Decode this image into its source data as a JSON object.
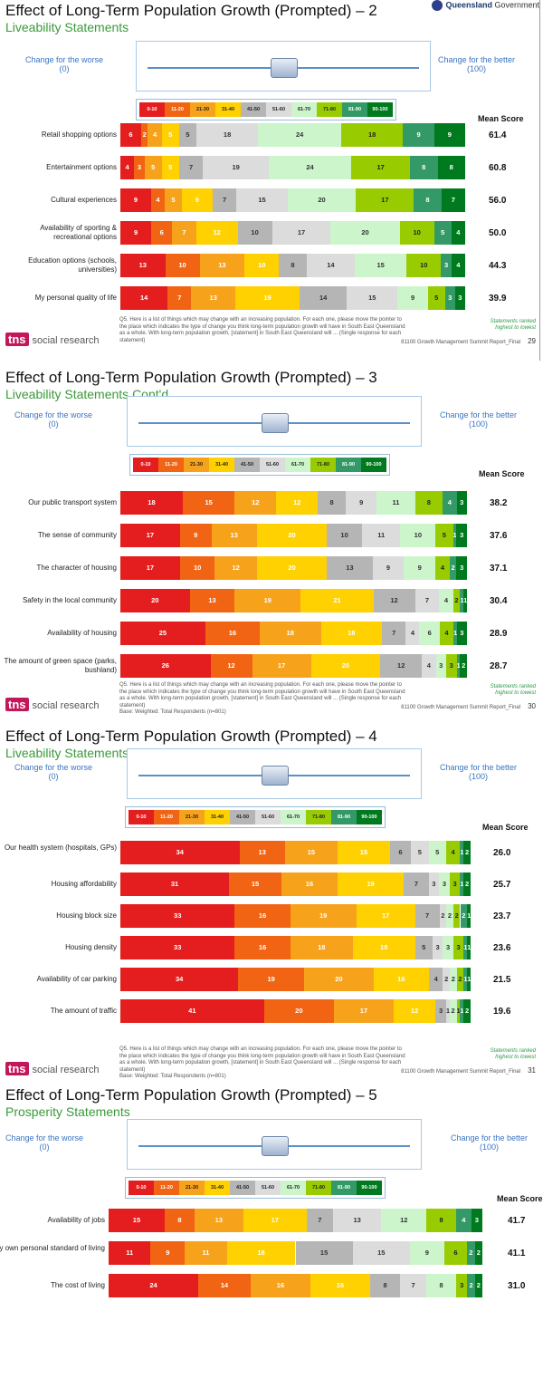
{
  "header": {
    "gov_label": "Queensland Government",
    "gov_label_bold": "Queensland",
    "gov_label_rest": "Government"
  },
  "scale": {
    "worse": "Change for the worse",
    "worse_value": "(0)",
    "better": "Change for the better",
    "better_value": "(100)",
    "mean_header": "Mean Score",
    "legend": [
      "0-10",
      "11-20",
      "21-30",
      "31-40",
      "41-50",
      "51-60",
      "61-70",
      "71-80",
      "81-90",
      "90-100"
    ],
    "colors": [
      "#e41e1e",
      "#f06414",
      "#f7a21b",
      "#ffd100",
      "#b5b5b5",
      "#dcdcdc",
      "#ccf5cc",
      "#99cc00",
      "#339966",
      "#007a1e"
    ]
  },
  "footnote": {
    "q5": "Q5.  Here is a list of things which may change with an increasing population.  For each one, please move the pointer to the place which indicates the type of change you think long-term population growth will have in South East Queensland as a whole.  With long-term population growth, [statement] in South East Queensland will ... (Single response for each statement)",
    "base": "Base: Weighted: Total Respondents (n=801)",
    "ranked": "Statements ranked highest to lowest",
    "report": "81100 Growth Management Summit Report_Final",
    "tns": "social research",
    "tns_logo": "tns"
  },
  "chart_data": [
    {
      "type": "bar",
      "stacked": true,
      "orientation": "horizontal",
      "title": "Effect of Long-Term Population Growth (Prompted) – 2",
      "subtitle": "Liveability Statements",
      "page": "29",
      "rows": [
        {
          "label": "Retail shopping options",
          "values": [
            6,
            2,
            4,
            5,
            5,
            18,
            24,
            18,
            9,
            9
          ],
          "mean": "61.4"
        },
        {
          "label": "Entertainment options",
          "values": [
            4,
            3,
            5,
            5,
            7,
            19,
            24,
            17,
            8,
            8
          ],
          "mean": "60.8"
        },
        {
          "label": "Cultural experiences",
          "values": [
            9,
            4,
            5,
            9,
            7,
            15,
            20,
            17,
            8,
            7
          ],
          "mean": "56.0"
        },
        {
          "label": "Availability of sporting & recreational options",
          "values": [
            9,
            6,
            7,
            12,
            10,
            17,
            20,
            10,
            5,
            4
          ],
          "mean": "50.0"
        },
        {
          "label": "Education options (schools, universities)",
          "values": [
            13,
            10,
            13,
            10,
            8,
            14,
            15,
            10,
            3,
            4
          ],
          "mean": "44.3"
        },
        {
          "label": "My personal quality of life",
          "values": [
            14,
            7,
            13,
            19,
            14,
            15,
            9,
            5,
            3,
            3
          ],
          "mean": "39.9"
        }
      ]
    },
    {
      "type": "bar",
      "stacked": true,
      "orientation": "horizontal",
      "title": "Effect of Long-Term Population Growth (Prompted) – 3",
      "subtitle": "Liveability Statements Cont'd",
      "page": "30",
      "rows": [
        {
          "label": "Our public transport system",
          "values": [
            18,
            15,
            12,
            12,
            8,
            9,
            11,
            8,
            4,
            3
          ],
          "mean": "38.2"
        },
        {
          "label": "The sense of community",
          "values": [
            17,
            9,
            13,
            20,
            10,
            11,
            10,
            5,
            1,
            3
          ],
          "mean": "37.6"
        },
        {
          "label": "The character of housing",
          "values": [
            17,
            10,
            12,
            20,
            13,
            9,
            9,
            4,
            2,
            3
          ],
          "mean": "37.1"
        },
        {
          "label": "Safety in the local community",
          "values": [
            20,
            13,
            19,
            21,
            12,
            7,
            4,
            2,
            1,
            1
          ],
          "mean": "30.4"
        },
        {
          "label": "Availability of housing",
          "values": [
            25,
            16,
            18,
            18,
            7,
            4,
            6,
            4,
            1,
            3
          ],
          "mean": "28.9"
        },
        {
          "label": "The amount of green space (parks, bushland)",
          "values": [
            26,
            12,
            17,
            20,
            12,
            4,
            3,
            3,
            1,
            2
          ],
          "mean": "28.7"
        }
      ]
    },
    {
      "type": "bar",
      "stacked": true,
      "orientation": "horizontal",
      "title": "Effect of Long-Term Population Growth (Prompted) – 4",
      "subtitle": "Liveability Statements Cont'd",
      "page": "31",
      "rows": [
        {
          "label": "Our health system (hospitals, GPs)",
          "values": [
            34,
            13,
            15,
            15,
            6,
            5,
            5,
            4,
            1,
            2
          ],
          "mean": "26.0"
        },
        {
          "label": "Housing affordability",
          "values": [
            31,
            15,
            16,
            19,
            7,
            3,
            3,
            3,
            1,
            2
          ],
          "mean": "25.7"
        },
        {
          "label": "Housing block size",
          "values": [
            33,
            16,
            19,
            17,
            7,
            2,
            2,
            2,
            2,
            1
          ],
          "mean": "23.7"
        },
        {
          "label": "Housing density",
          "values": [
            33,
            16,
            18,
            18,
            5,
            3,
            3,
            3,
            1,
            1
          ],
          "mean": "23.6"
        },
        {
          "label": "Availability of car parking",
          "values": [
            34,
            19,
            20,
            16,
            4,
            2,
            2,
            2,
            1,
            1
          ],
          "mean": "21.5"
        },
        {
          "label": "The amount of traffic",
          "values": [
            41,
            20,
            17,
            12,
            3,
            1,
            2,
            1,
            1,
            2
          ],
          "mean": "19.6"
        }
      ]
    },
    {
      "type": "bar",
      "stacked": true,
      "orientation": "horizontal",
      "title": "Effect of Long-Term Population Growth (Prompted) – 5",
      "subtitle": "Prosperity Statements",
      "page": "",
      "rows": [
        {
          "label": "Availability of jobs",
          "values": [
            15,
            8,
            13,
            17,
            7,
            13,
            12,
            8,
            4,
            3
          ],
          "mean": "41.7"
        },
        {
          "label": "My own personal standard of living",
          "values": [
            11,
            9,
            11,
            18,
            15,
            15,
            9,
            6,
            2,
            2
          ],
          "mean": "41.1"
        },
        {
          "label": "The cost of living",
          "values": [
            24,
            14,
            16,
            16,
            8,
            7,
            8,
            3,
            2,
            2
          ],
          "mean": "31.0"
        }
      ]
    }
  ]
}
